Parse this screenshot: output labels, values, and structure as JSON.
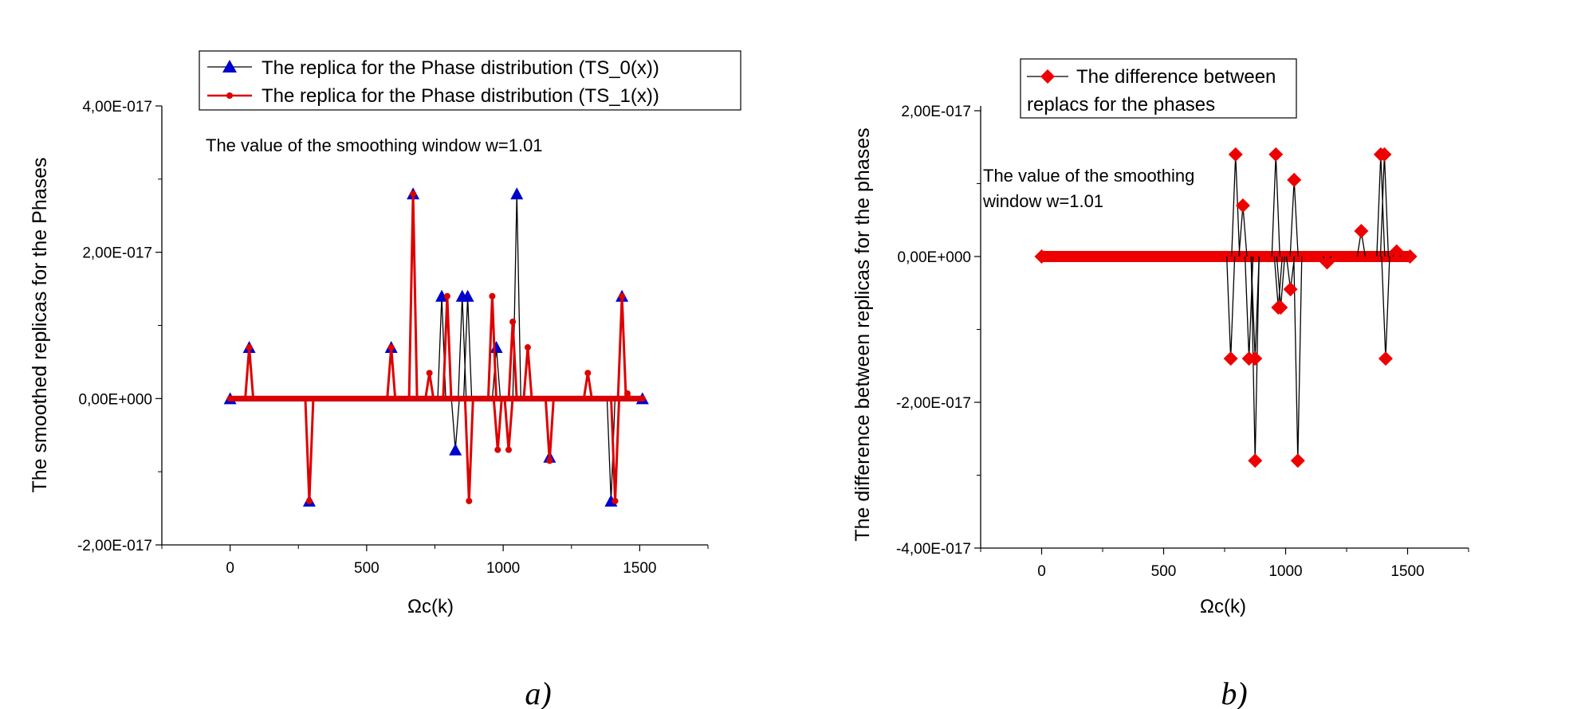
{
  "chart_data": [
    {
      "type": "line",
      "panel_label": "a)",
      "xlabel": "Ωc(k)",
      "ylabel": "The smoothed replicas for the Phases",
      "xlim": [
        -250,
        1750
      ],
      "ylim": [
        -2e-17,
        4e-17
      ],
      "xticks": [
        0,
        500,
        1000,
        1500
      ],
      "yticks": [
        -2e-17,
        0,
        2e-17,
        4e-17
      ],
      "xtick_labels": [
        "0",
        "500",
        "1000",
        "1500"
      ],
      "ytick_labels": [
        "-2,00E-017",
        "0,00E+000",
        "2,00E-017",
        "4,00E-017"
      ],
      "annotation": "The value of the smoothing window w=1.01",
      "legend_position": "top-center",
      "x_range": [
        0,
        1510
      ],
      "baseline": 0,
      "series": [
        {
          "name": "The replica for the Phase distribution (TS_0(x))",
          "color": "#0000cc",
          "line_color": "#000000",
          "marker": "triangle",
          "spikes": [
            [
              70,
              7e-18
            ],
            [
              290,
              -1.4e-17
            ],
            [
              590,
              7e-18
            ],
            [
              670,
              2.8e-17
            ],
            [
              775,
              1.4e-17
            ],
            [
              825,
              -7e-18
            ],
            [
              850,
              1.4e-17
            ],
            [
              870,
              1.4e-17
            ],
            [
              975,
              7e-18
            ],
            [
              1050,
              2.8e-17
            ],
            [
              1170,
              -8e-18
            ],
            [
              1395,
              -1.4e-17
            ],
            [
              1435,
              1.4e-17
            ]
          ]
        },
        {
          "name": "The replica for the Phase distribution (TS_1(x))",
          "color": "#dd0000",
          "line_color": "#dd0000",
          "marker": "circle",
          "spikes": [
            [
              70,
              7e-18
            ],
            [
              290,
              -1.4e-17
            ],
            [
              590,
              7e-18
            ],
            [
              670,
              2.8e-17
            ],
            [
              730,
              3.5e-18
            ],
            [
              795,
              1.4e-17
            ],
            [
              875,
              -1.4e-17
            ],
            [
              960,
              1.4e-17
            ],
            [
              980,
              -7e-18
            ],
            [
              1020,
              -7e-18
            ],
            [
              1035,
              1.05e-17
            ],
            [
              1090,
              7e-18
            ],
            [
              1170,
              -8.5e-18
            ],
            [
              1310,
              3.5e-18
            ],
            [
              1410,
              -1.4e-17
            ],
            [
              1435,
              1.4e-17
            ],
            [
              1455,
              7e-19
            ]
          ]
        }
      ]
    },
    {
      "type": "line",
      "panel_label": "b)",
      "xlabel": "Ωc(k)",
      "ylabel": "The difference between replicas for the phases",
      "xlim": [
        -250,
        1750
      ],
      "ylim": [
        -4e-17,
        2e-17
      ],
      "xticks": [
        0,
        500,
        1000,
        1500
      ],
      "yticks": [
        -4e-17,
        -2e-17,
        0,
        2e-17
      ],
      "xtick_labels": [
        "0",
        "500",
        "1000",
        "1500"
      ],
      "ytick_labels": [
        "-4,00E-017",
        "-2,00E-017",
        "0,00E+000",
        "2,00E-017"
      ],
      "annotation_lines": [
        "The value of the smoothing",
        "window w=1.01"
      ],
      "legend_position": "top-left",
      "x_range": [
        0,
        1510
      ],
      "baseline": 0,
      "series": [
        {
          "name_lines": [
            "The difference between",
            "replacs for the phases"
          ],
          "color": "#ee0000",
          "line_color": "#000000",
          "marker": "diamond",
          "spikes": [
            [
              775,
              -1.4e-17
            ],
            [
              795,
              1.4e-17
            ],
            [
              825,
              7e-18
            ],
            [
              850,
              -1.4e-17
            ],
            [
              875,
              -1.4e-17
            ],
            [
              875,
              -2.8e-17
            ],
            [
              960,
              1.4e-17
            ],
            [
              970,
              -7e-18
            ],
            [
              980,
              -7e-18
            ],
            [
              1020,
              -4.5e-18
            ],
            [
              1035,
              1.05e-17
            ],
            [
              1050,
              -2.8e-17
            ],
            [
              1170,
              -8e-19
            ],
            [
              1310,
              3.5e-18
            ],
            [
              1390,
              1.4e-17
            ],
            [
              1405,
              1.4e-17
            ],
            [
              1410,
              -1.4e-17
            ],
            [
              1455,
              7e-19
            ]
          ]
        }
      ]
    }
  ]
}
